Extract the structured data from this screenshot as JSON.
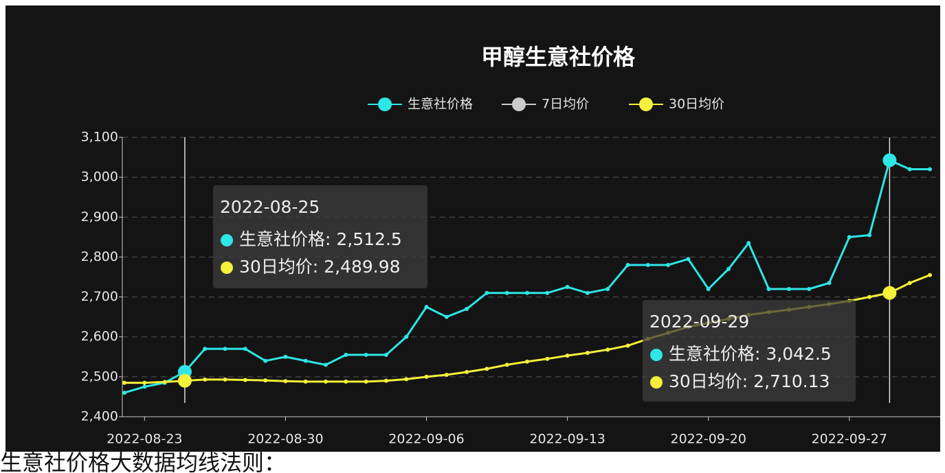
{
  "chart_data": {
    "type": "line",
    "title": "甲醇生意社价格",
    "categories": [
      "2022-08-22",
      "2022-08-23",
      "2022-08-24",
      "2022-08-25",
      "2022-08-26",
      "2022-08-27",
      "2022-08-28",
      "2022-08-29",
      "2022-08-30",
      "2022-08-31",
      "2022-09-01",
      "2022-09-02",
      "2022-09-03",
      "2022-09-04",
      "2022-09-05",
      "2022-09-06",
      "2022-09-07",
      "2022-09-08",
      "2022-09-09",
      "2022-09-10",
      "2022-09-11",
      "2022-09-12",
      "2022-09-13",
      "2022-09-14",
      "2022-09-15",
      "2022-09-16",
      "2022-09-17",
      "2022-09-18",
      "2022-09-19",
      "2022-09-20",
      "2022-09-21",
      "2022-09-22",
      "2022-09-23",
      "2022-09-24",
      "2022-09-25",
      "2022-09-26",
      "2022-09-27",
      "2022-09-28",
      "2022-09-29",
      "2022-09-30",
      "2022-10-01"
    ],
    "xtick_every": 7,
    "series": [
      {
        "name": "生意社价格",
        "color": "#2ee6e6",
        "values": [
          2460,
          2475,
          2485,
          2512.5,
          2570,
          2570,
          2570,
          2540,
          2550,
          2540,
          2530,
          2555,
          2555,
          2555,
          2600,
          2675,
          2650,
          2670,
          2710,
          2710,
          2710,
          2710,
          2725,
          2710,
          2720,
          2780,
          2780,
          2780,
          2795,
          2720,
          2770,
          2835,
          2720,
          2720,
          2720,
          2735,
          2850,
          2855,
          3042.5,
          3020,
          3020
        ]
      },
      {
        "name": "7日均价",
        "color": "#cccccc",
        "values": [
          null,
          null,
          null,
          null,
          null,
          null,
          null,
          null,
          null,
          null,
          null,
          null,
          null,
          null,
          null,
          null,
          null,
          null,
          null,
          null,
          null,
          null,
          null,
          null,
          null,
          null,
          null,
          null,
          null,
          null,
          null,
          null,
          null,
          null,
          null,
          null,
          null,
          null,
          null,
          null,
          null
        ]
      },
      {
        "name": "30日均价",
        "color": "#f5f03a",
        "values": [
          2485,
          2485,
          2487,
          2489.98,
          2493,
          2493,
          2492,
          2491,
          2489,
          2488,
          2488,
          2488,
          2488,
          2490,
          2494,
          2500,
          2505,
          2512,
          2520,
          2530,
          2538,
          2545,
          2553,
          2560,
          2568,
          2578,
          2595,
          2610,
          2625,
          2635,
          2645,
          2655,
          2662,
          2668,
          2675,
          2682,
          2690,
          2700,
          2710.13,
          2735,
          2755
        ]
      }
    ],
    "ylim": [
      2400,
      3100
    ],
    "yticks": [
      {
        "value": 2400,
        "label": "2,400"
      },
      {
        "value": 2500,
        "label": "2,500"
      },
      {
        "value": 2600,
        "label": "2,600"
      },
      {
        "value": 2700,
        "label": "2,700"
      },
      {
        "value": 2800,
        "label": "2,800"
      },
      {
        "value": 2900,
        "label": "2,900"
      },
      {
        "value": 3000,
        "label": "3,000"
      },
      {
        "value": 3100,
        "label": "3,100"
      }
    ],
    "grid": true,
    "tooltips": [
      {
        "title": "2022-08-25",
        "lines": [
          "生意社价格: 2,512.5",
          "30日均价: 2,489.98"
        ]
      },
      {
        "title": "2022-09-29",
        "lines": [
          "生意社价格: 3,042.5",
          "30日均价: 2,710.13"
        ]
      }
    ]
  },
  "caption": "生意社价格大数据均线法则："
}
